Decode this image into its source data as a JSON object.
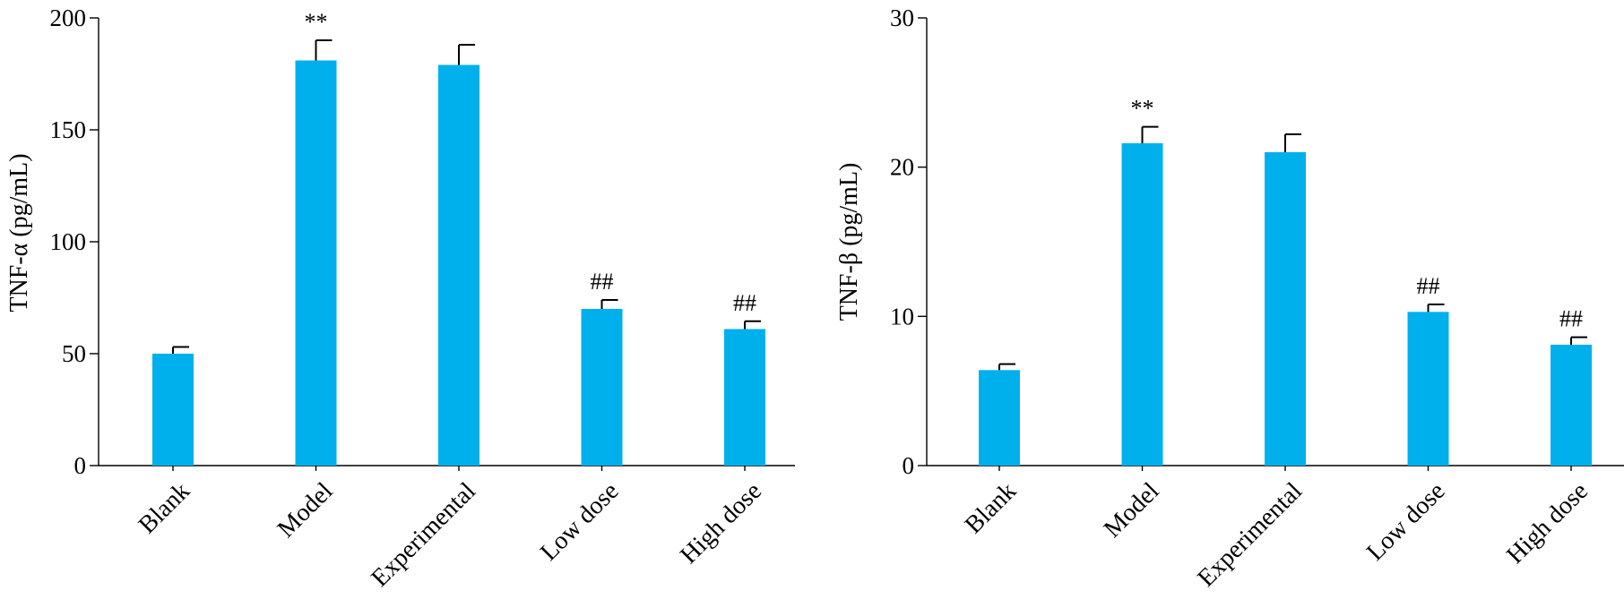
{
  "chart_data": [
    {
      "type": "bar",
      "ylabel": "TNF-α (pg/mL)",
      "ylim": [
        0,
        200
      ],
      "yticks": [
        0,
        50,
        100,
        150,
        200
      ],
      "categories": [
        "Blank",
        "Model",
        "Experimental",
        "Low dose",
        "High dose"
      ],
      "values": [
        50,
        181,
        179,
        70,
        61
      ],
      "errors": [
        3,
        9,
        9,
        4,
        3.5
      ],
      "annotations": [
        "",
        "**",
        "",
        "##",
        "##"
      ],
      "bar_color": "#00b0ec",
      "grid": false
    },
    {
      "type": "bar",
      "ylabel": "TNF-β (pg/mL)",
      "ylim": [
        0,
        30
      ],
      "yticks": [
        0,
        10,
        20,
        30
      ],
      "categories": [
        "Blank",
        "Model",
        "Experimental",
        "Low dose",
        "High dose"
      ],
      "values": [
        6.4,
        21.6,
        21.0,
        10.3,
        8.1
      ],
      "errors": [
        0.4,
        1.1,
        1.2,
        0.5,
        0.5
      ],
      "annotations": [
        "",
        "**",
        "",
        "##",
        "##"
      ],
      "bar_color": "#00b0ec",
      "grid": false
    }
  ]
}
